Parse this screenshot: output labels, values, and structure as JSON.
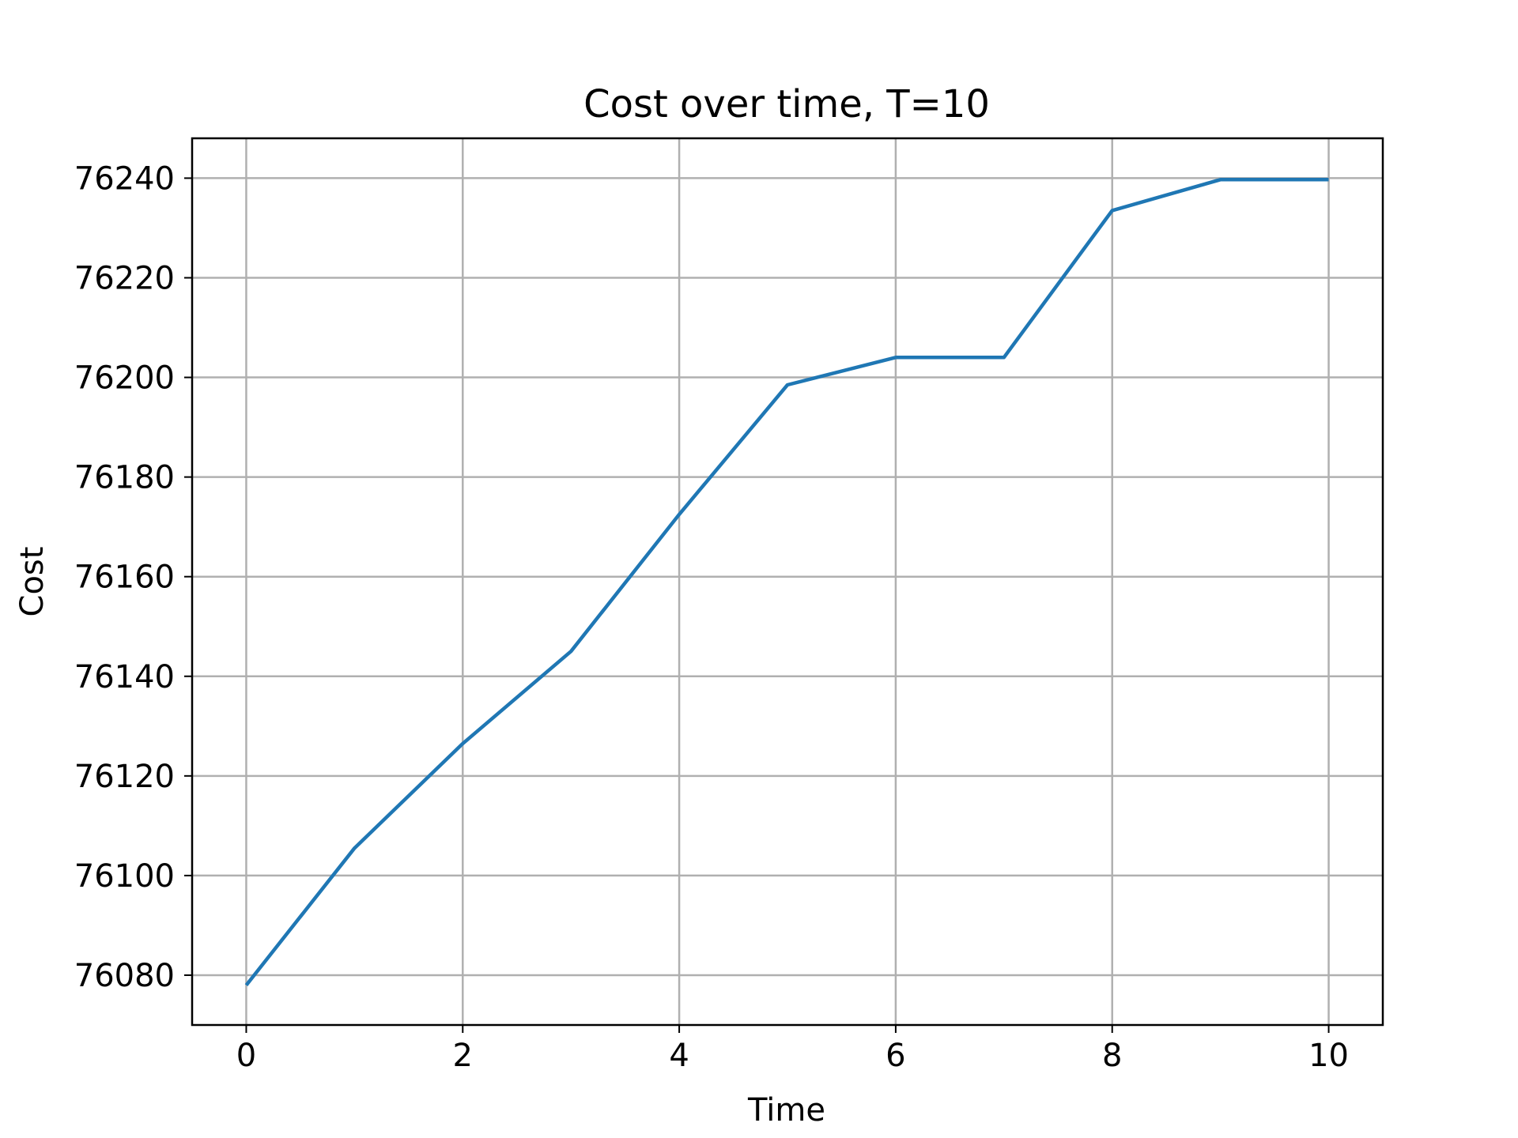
{
  "chart_data": {
    "type": "line",
    "title": "Cost over time, T=10",
    "xlabel": "Time",
    "ylabel": "Cost",
    "xlim": [
      -0.5,
      10.5
    ],
    "ylim": [
      76070,
      76248
    ],
    "xticks": [
      0,
      2,
      4,
      6,
      8,
      10
    ],
    "yticks": [
      76080,
      76100,
      76120,
      76140,
      76160,
      76180,
      76200,
      76220,
      76240
    ],
    "grid": true,
    "series": [
      {
        "color": "#1f77b4",
        "x": [
          0,
          1,
          2,
          3,
          4,
          5,
          6,
          7,
          8,
          9,
          10
        ],
        "y": [
          76078,
          76105.5,
          76126.5,
          76145,
          76172.5,
          76198.5,
          76204,
          76204,
          76233.5,
          76239.7,
          76239.7
        ]
      }
    ]
  }
}
